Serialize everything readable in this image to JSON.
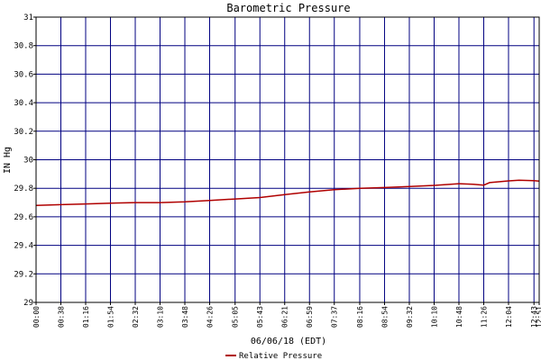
{
  "chart_data": {
    "type": "line",
    "title": "Barometric Pressure",
    "ylabel": "IN Hg",
    "xlabel": "06/06/18 (EDT)",
    "ylim": [
      29,
      31
    ],
    "yticks": [
      29,
      29.2,
      29.4,
      29.6,
      29.8,
      30,
      30.2,
      30.4,
      30.6,
      30.8,
      31
    ],
    "ytick_labels": [
      "29",
      "29.2",
      "29.4",
      "29.6",
      "29.8",
      "30",
      "30.2",
      "30.4",
      "30.6",
      "30.8",
      "31"
    ],
    "xticks": [
      "00:00",
      "00:38",
      "01:16",
      "01:54",
      "02:32",
      "03:10",
      "03:48",
      "04:26",
      "05:05",
      "05:43",
      "06:21",
      "06:59",
      "07:37",
      "08:16",
      "08:54",
      "09:32",
      "10:10",
      "10:48",
      "11:26",
      "12:04",
      "12:43",
      "12:51"
    ],
    "grid": true,
    "legend_position": "bottom-center",
    "colors": {
      "grid": "#000080",
      "line": "#b00000",
      "axis": "#000000"
    },
    "series": [
      {
        "name": "Relative Pressure",
        "x": [
          "00:00",
          "00:38",
          "01:16",
          "01:54",
          "02:32",
          "03:10",
          "03:48",
          "04:26",
          "05:05",
          "05:43",
          "06:21",
          "06:59",
          "07:37",
          "08:16",
          "08:54",
          "09:32",
          "10:10",
          "10:48",
          "11:10",
          "11:26",
          "11:35",
          "12:04",
          "12:20",
          "12:43",
          "12:51"
        ],
        "y": [
          29.68,
          29.685,
          29.69,
          29.695,
          29.7,
          29.7,
          29.705,
          29.715,
          29.725,
          29.735,
          29.755,
          29.775,
          29.79,
          29.8,
          29.805,
          29.812,
          29.82,
          29.832,
          29.828,
          29.822,
          29.84,
          29.852,
          29.857,
          29.853,
          29.85
        ]
      }
    ]
  }
}
